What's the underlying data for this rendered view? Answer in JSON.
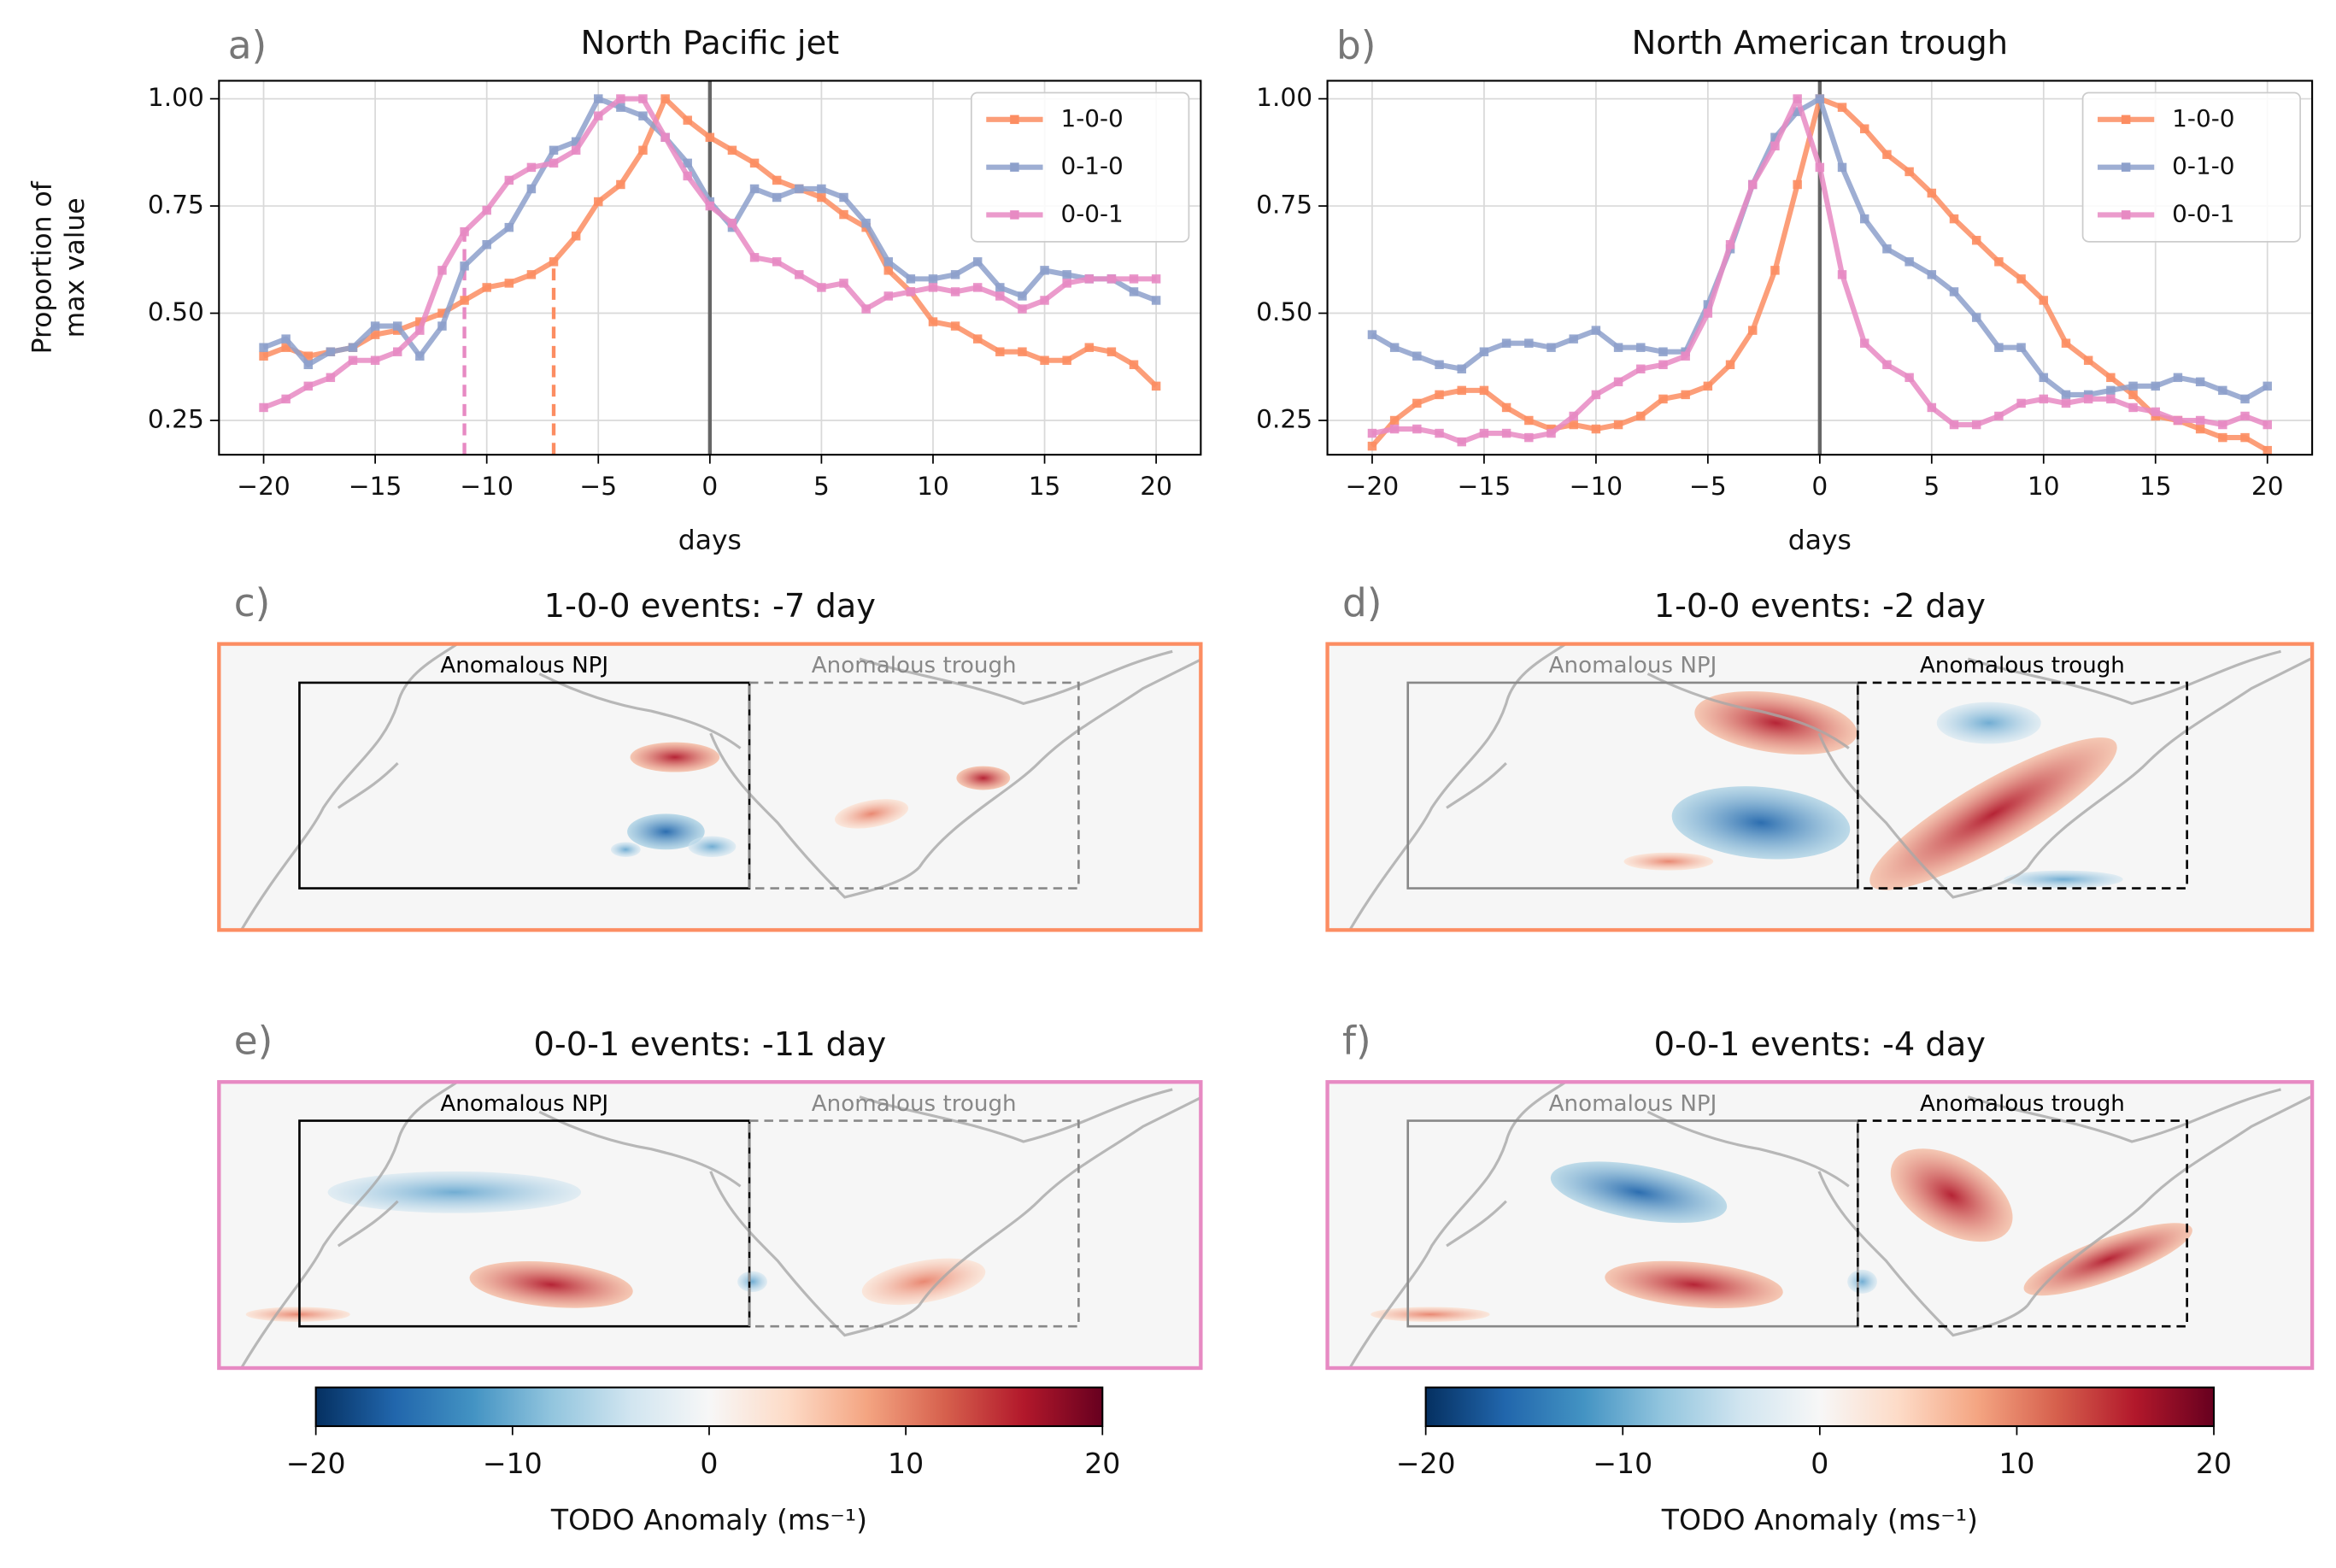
{
  "chart_data": [
    {
      "type": "line",
      "panel": "a)",
      "title": "North Pacific jet",
      "xlabel": "days",
      "ylabel": [
        "Proportion of",
        "max value"
      ],
      "x": [
        -20,
        -19,
        -18,
        -17,
        -16,
        -15,
        -14,
        -13,
        -12,
        -11,
        -10,
        -9,
        -8,
        -7,
        -6,
        -5,
        -4,
        -3,
        -2,
        -1,
        0,
        1,
        2,
        3,
        4,
        5,
        6,
        7,
        8,
        9,
        10,
        11,
        12,
        13,
        14,
        15,
        16,
        17,
        18,
        19,
        20
      ],
      "series": [
        {
          "name": "1-0-0",
          "color": "#fc8d62",
          "values": [
            0.4,
            0.42,
            0.4,
            0.41,
            0.42,
            0.45,
            0.46,
            0.48,
            0.5,
            0.53,
            0.56,
            0.57,
            0.59,
            0.62,
            0.68,
            0.76,
            0.8,
            0.88,
            1.0,
            0.95,
            0.91,
            0.88,
            0.85,
            0.81,
            0.79,
            0.77,
            0.73,
            0.7,
            0.6,
            0.55,
            0.48,
            0.47,
            0.44,
            0.41,
            0.41,
            0.39,
            0.39,
            0.42,
            0.41,
            0.38,
            0.33
          ]
        },
        {
          "name": "0-1-0",
          "color": "#8da0cb",
          "values": [
            0.42,
            0.44,
            0.38,
            0.41,
            0.42,
            0.47,
            0.47,
            0.4,
            0.47,
            0.61,
            0.66,
            0.7,
            0.79,
            0.88,
            0.9,
            1.0,
            0.98,
            0.96,
            0.91,
            0.85,
            0.76,
            0.7,
            0.79,
            0.77,
            0.79,
            0.79,
            0.77,
            0.71,
            0.62,
            0.58,
            0.58,
            0.59,
            0.62,
            0.56,
            0.54,
            0.6,
            0.59,
            0.58,
            0.58,
            0.55,
            0.53
          ]
        },
        {
          "name": "0-0-1",
          "color": "#e78ac3",
          "values": [
            0.28,
            0.3,
            0.33,
            0.35,
            0.39,
            0.39,
            0.41,
            0.46,
            0.6,
            0.69,
            0.74,
            0.81,
            0.84,
            0.85,
            0.88,
            0.96,
            1.0,
            1.0,
            0.91,
            0.82,
            0.75,
            0.71,
            0.63,
            0.62,
            0.59,
            0.56,
            0.57,
            0.51,
            0.54,
            0.55,
            0.56,
            0.55,
            0.56,
            0.54,
            0.51,
            0.53,
            0.57,
            0.58,
            0.58,
            0.58,
            0.58
          ]
        }
      ],
      "xlim": [
        -22,
        22
      ],
      "ylim": [
        0.17,
        1.042
      ],
      "xticks": [
        {
          "value": -20,
          "label": "−20"
        },
        {
          "value": -15,
          "label": "−15"
        },
        {
          "value": -10,
          "label": "−10"
        },
        {
          "value": -5,
          "label": "−5"
        },
        0,
        5,
        10,
        15,
        20
      ],
      "yticks": [
        0.25,
        {
          "value": 0.5,
          "label": "0.50"
        },
        0.75,
        {
          "value": 1,
          "label": "1.00"
        }
      ],
      "grid": true,
      "legend": "upper right",
      "vline": 0,
      "vlines": [
        {
          "x": -11,
          "series": 2
        },
        {
          "x": -7,
          "series": 0
        }
      ]
    },
    {
      "type": "line",
      "panel": "b)",
      "title": "North American trough",
      "xlabel": "days",
      "x": [
        -20,
        -19,
        -18,
        -17,
        -16,
        -15,
        -14,
        -13,
        -12,
        -11,
        -10,
        -9,
        -8,
        -7,
        -6,
        -5,
        -4,
        -3,
        -2,
        -1,
        0,
        1,
        2,
        3,
        4,
        5,
        6,
        7,
        8,
        9,
        10,
        11,
        12,
        13,
        14,
        15,
        16,
        17,
        18,
        19,
        20
      ],
      "series": [
        {
          "name": "1-0-0",
          "color": "#fc8d62",
          "values": [
            0.19,
            0.25,
            0.29,
            0.31,
            0.32,
            0.32,
            0.28,
            0.25,
            0.23,
            0.24,
            0.23,
            0.24,
            0.26,
            0.3,
            0.31,
            0.33,
            0.38,
            0.46,
            0.6,
            0.8,
            1.0,
            0.98,
            0.93,
            0.87,
            0.83,
            0.78,
            0.72,
            0.67,
            0.62,
            0.58,
            0.53,
            0.43,
            0.39,
            0.35,
            0.31,
            0.26,
            0.25,
            0.23,
            0.21,
            0.21,
            0.18
          ]
        },
        {
          "name": "0-1-0",
          "color": "#8da0cb",
          "values": [
            0.45,
            0.42,
            0.4,
            0.38,
            0.37,
            0.41,
            0.43,
            0.43,
            0.42,
            0.44,
            0.46,
            0.42,
            0.42,
            0.41,
            0.41,
            0.52,
            0.65,
            0.8,
            0.91,
            0.97,
            1.0,
            0.84,
            0.72,
            0.65,
            0.62,
            0.59,
            0.55,
            0.49,
            0.42,
            0.42,
            0.35,
            0.31,
            0.31,
            0.32,
            0.33,
            0.33,
            0.35,
            0.34,
            0.32,
            0.3,
            0.33
          ]
        },
        {
          "name": "0-0-1",
          "color": "#e78ac3",
          "values": [
            0.22,
            0.23,
            0.23,
            0.22,
            0.2,
            0.22,
            0.22,
            0.21,
            0.22,
            0.26,
            0.31,
            0.34,
            0.37,
            0.38,
            0.4,
            0.5,
            0.66,
            0.8,
            0.89,
            1.0,
            0.84,
            0.59,
            0.43,
            0.38,
            0.35,
            0.28,
            0.24,
            0.24,
            0.26,
            0.29,
            0.3,
            0.29,
            0.3,
            0.3,
            0.28,
            0.27,
            0.25,
            0.25,
            0.24,
            0.26,
            0.24
          ]
        }
      ],
      "xlim": [
        -22,
        22
      ],
      "ylim": [
        0.17,
        1.042
      ],
      "xticks": [
        {
          "value": -20,
          "label": "−20"
        },
        {
          "value": -15,
          "label": "−15"
        },
        {
          "value": -10,
          "label": "−10"
        },
        {
          "value": -5,
          "label": "−5"
        },
        0,
        5,
        10,
        15,
        20
      ],
      "yticks": [
        0.25,
        {
          "value": 0.5,
          "label": "0.50"
        },
        0.75,
        {
          "value": 1,
          "label": "1.00"
        }
      ],
      "grid": true,
      "legend": "upper right",
      "vline": 0
    },
    {
      "type": "map",
      "panel": "c)",
      "title": "1-0-0 events: -7 day",
      "border": "#fc8d62",
      "boxes": [
        "Anomalous NPJ",
        "Anomalous trough"
      ],
      "active": 0
    },
    {
      "type": "map",
      "panel": "d)",
      "title": "1-0-0 events: -2 day",
      "border": "#fc8d62",
      "boxes": [
        "Anomalous NPJ",
        "Anomalous trough"
      ],
      "active": 1
    },
    {
      "type": "map",
      "panel": "e)",
      "title": "0-0-1 events: -11 day",
      "border": "#e78ac3",
      "boxes": [
        "Anomalous NPJ",
        "Anomalous trough"
      ],
      "active": 0
    },
    {
      "type": "map",
      "panel": "f)",
      "title": "0-0-1 events: -4 day",
      "border": "#e78ac3",
      "boxes": [
        "Anomalous NPJ",
        "Anomalous trough"
      ],
      "active": 1
    },
    {
      "type": "colorbar",
      "label": "TODO Anomaly (ms⁻¹)",
      "xlim": [
        -20,
        20
      ],
      "xticks": [
        {
          "value": -20,
          "label": "−20"
        },
        {
          "value": -10,
          "label": "−10"
        },
        0,
        10,
        20
      ],
      "colors": [
        "#053061",
        "#2166ac",
        "#4393c3",
        "#92c5de",
        "#d1e5f0",
        "#f7f7f7",
        "#fddbc7",
        "#f4a582",
        "#d6604d",
        "#b2182b",
        "#67001f"
      ]
    },
    {
      "type": "colorbar",
      "label": "TODO Anomaly (ms⁻¹)",
      "xlim": [
        -20,
        20
      ],
      "xticks": [
        {
          "value": -20,
          "label": "−20"
        },
        {
          "value": -10,
          "label": "−10"
        },
        0,
        10,
        20
      ],
      "colors": [
        "#053061",
        "#2166ac",
        "#4393c3",
        "#92c5de",
        "#d1e5f0",
        "#f7f7f7",
        "#fddbc7",
        "#f4a582",
        "#d6604d",
        "#b2182b",
        "#67001f"
      ]
    }
  ]
}
